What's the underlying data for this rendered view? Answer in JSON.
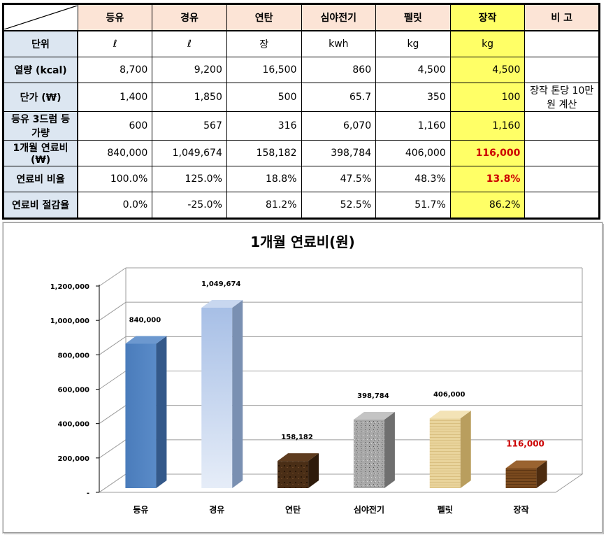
{
  "table": {
    "headers": [
      "등유",
      "경유",
      "연탄",
      "심야전기",
      "펠릿",
      "장작",
      "비 고"
    ],
    "rows": [
      {
        "label": "단위",
        "cells": [
          "ℓ",
          "ℓ",
          "장",
          "kwh",
          "kg",
          "kg"
        ],
        "note": ""
      },
      {
        "label": "열량 (kcal)",
        "cells": [
          "8,700",
          "9,200",
          "16,500",
          "860",
          "4,500",
          "4,500"
        ],
        "note": ""
      },
      {
        "label": "단가 (₩)",
        "cells": [
          "1,400",
          "1,850",
          "500",
          "65.7",
          "350",
          "100"
        ],
        "note": "장작 톤당 10만원 계산"
      },
      {
        "label": "등유 3드럼 등가량",
        "cells": [
          "600",
          "567",
          "316",
          "6,070",
          "1,160",
          "1,160"
        ],
        "note": ""
      },
      {
        "label": "1개월 연료비(₩)",
        "cells": [
          "840,000",
          "1,049,674",
          "158,182",
          "398,784",
          "406,000",
          "116,000"
        ],
        "note": ""
      },
      {
        "label": "연료비 비율",
        "cells": [
          "100.0%",
          "125.0%",
          "18.8%",
          "47.5%",
          "48.3%",
          "13.8%"
        ],
        "note": ""
      },
      {
        "label": "연료비 절감율",
        "cells": [
          "0.0%",
          "-25.0%",
          "81.2%",
          "52.5%",
          "51.7%",
          "86.2%"
        ],
        "note": ""
      }
    ],
    "colors": {
      "header_bg": "#fce4d6",
      "row_header_bg": "#dce6f1",
      "highlight": "#ffff66",
      "emphasis": "#cc0000"
    }
  },
  "chart_data": {
    "type": "bar",
    "title": "1개월 연료비(원)",
    "categories": [
      "등유",
      "경유",
      "연탄",
      "심야전기",
      "펠릿",
      "장작"
    ],
    "values": [
      840000,
      1049674,
      158182,
      398784,
      406000,
      116000
    ],
    "data_labels": [
      "840,000",
      "1,049,674",
      "158,182",
      "398,784",
      "406,000",
      "116,000"
    ],
    "ylim": [
      0,
      1200000
    ],
    "y_ticks": [
      0,
      200000,
      400000,
      600000,
      800000,
      1000000,
      1200000
    ],
    "y_tick_labels": [
      "-",
      "200,000",
      "400,000",
      "600,000",
      "800,000",
      "1,000,000",
      "1,200,000"
    ],
    "grid": true,
    "legend": "none",
    "three_d": true,
    "bar_colors": [
      "#4f81bd",
      "#b8cbea",
      "#4a2e16",
      "#a9a9a9",
      "#e6cf96",
      "#7a4a1e"
    ],
    "label_colors": [
      "#000000",
      "#000000",
      "#000000",
      "#000000",
      "#000000",
      "#cc0000"
    ]
  }
}
